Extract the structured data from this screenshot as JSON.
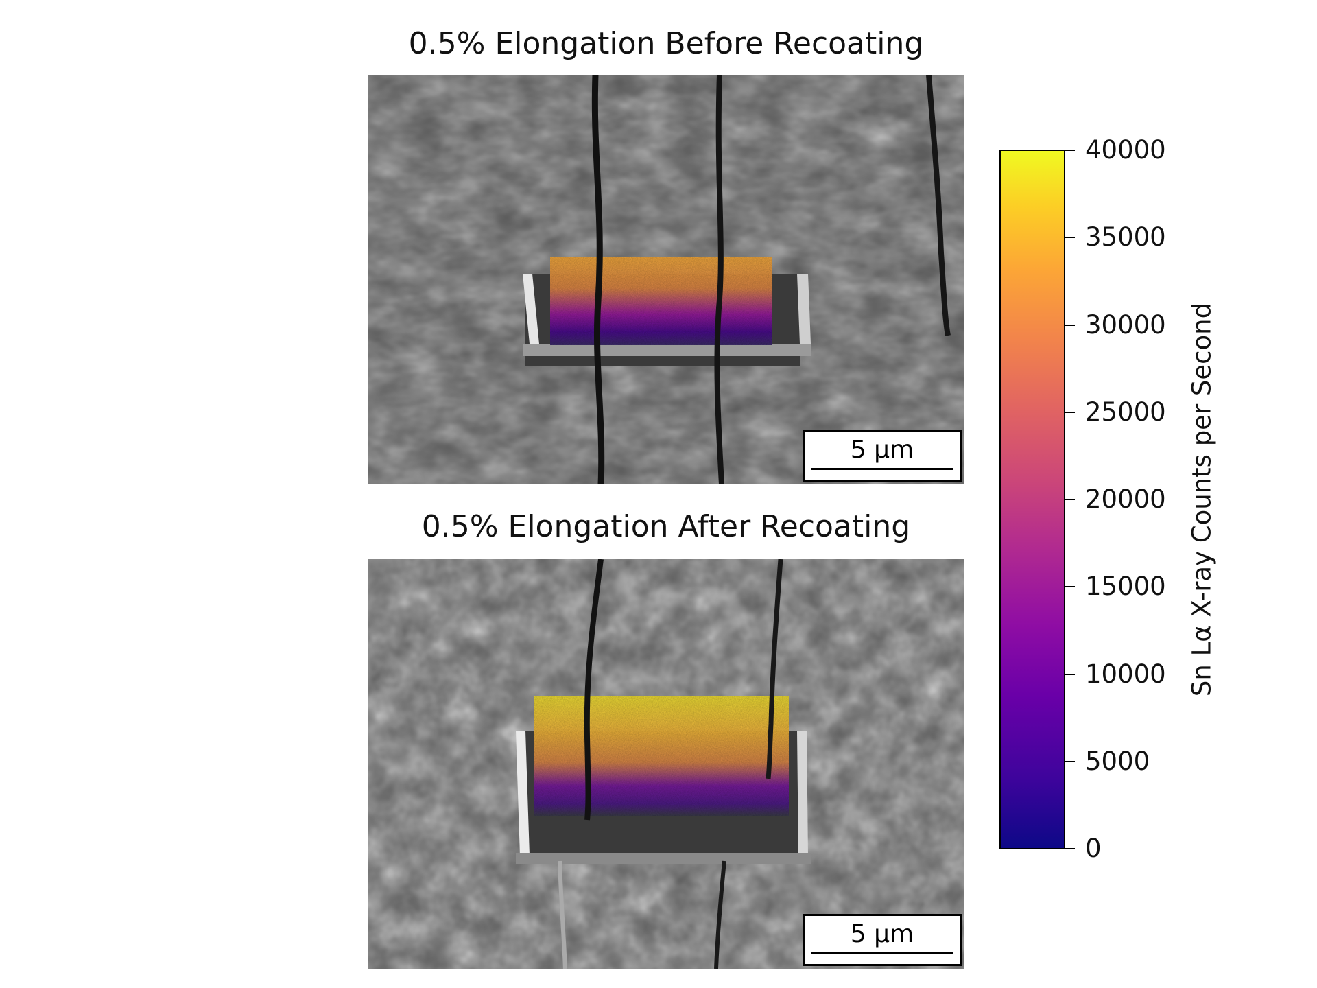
{
  "panels": [
    {
      "title": "0.5% Elongation Before Recoating",
      "scalebar": "5 µm"
    },
    {
      "title": "0.5% Elongation After Recoating",
      "scalebar": "5 µm"
    }
  ],
  "colorbar": {
    "label": "Sn Lα X-ray Counts per Second",
    "colormap": "plasma",
    "min": 0,
    "max": 40000,
    "ticks": [
      "0",
      "5000",
      "10000",
      "15000",
      "20000",
      "25000",
      "30000",
      "35000",
      "40000"
    ]
  }
}
